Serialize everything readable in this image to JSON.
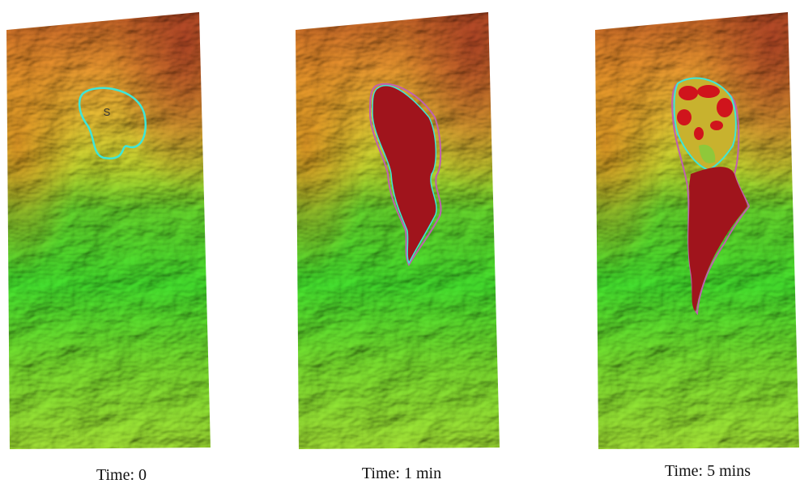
{
  "panels": [
    {
      "label": "Time: 0",
      "marker": "S"
    },
    {
      "label": "Time: 1 min"
    },
    {
      "label": "Time: 5 mins"
    }
  ]
}
